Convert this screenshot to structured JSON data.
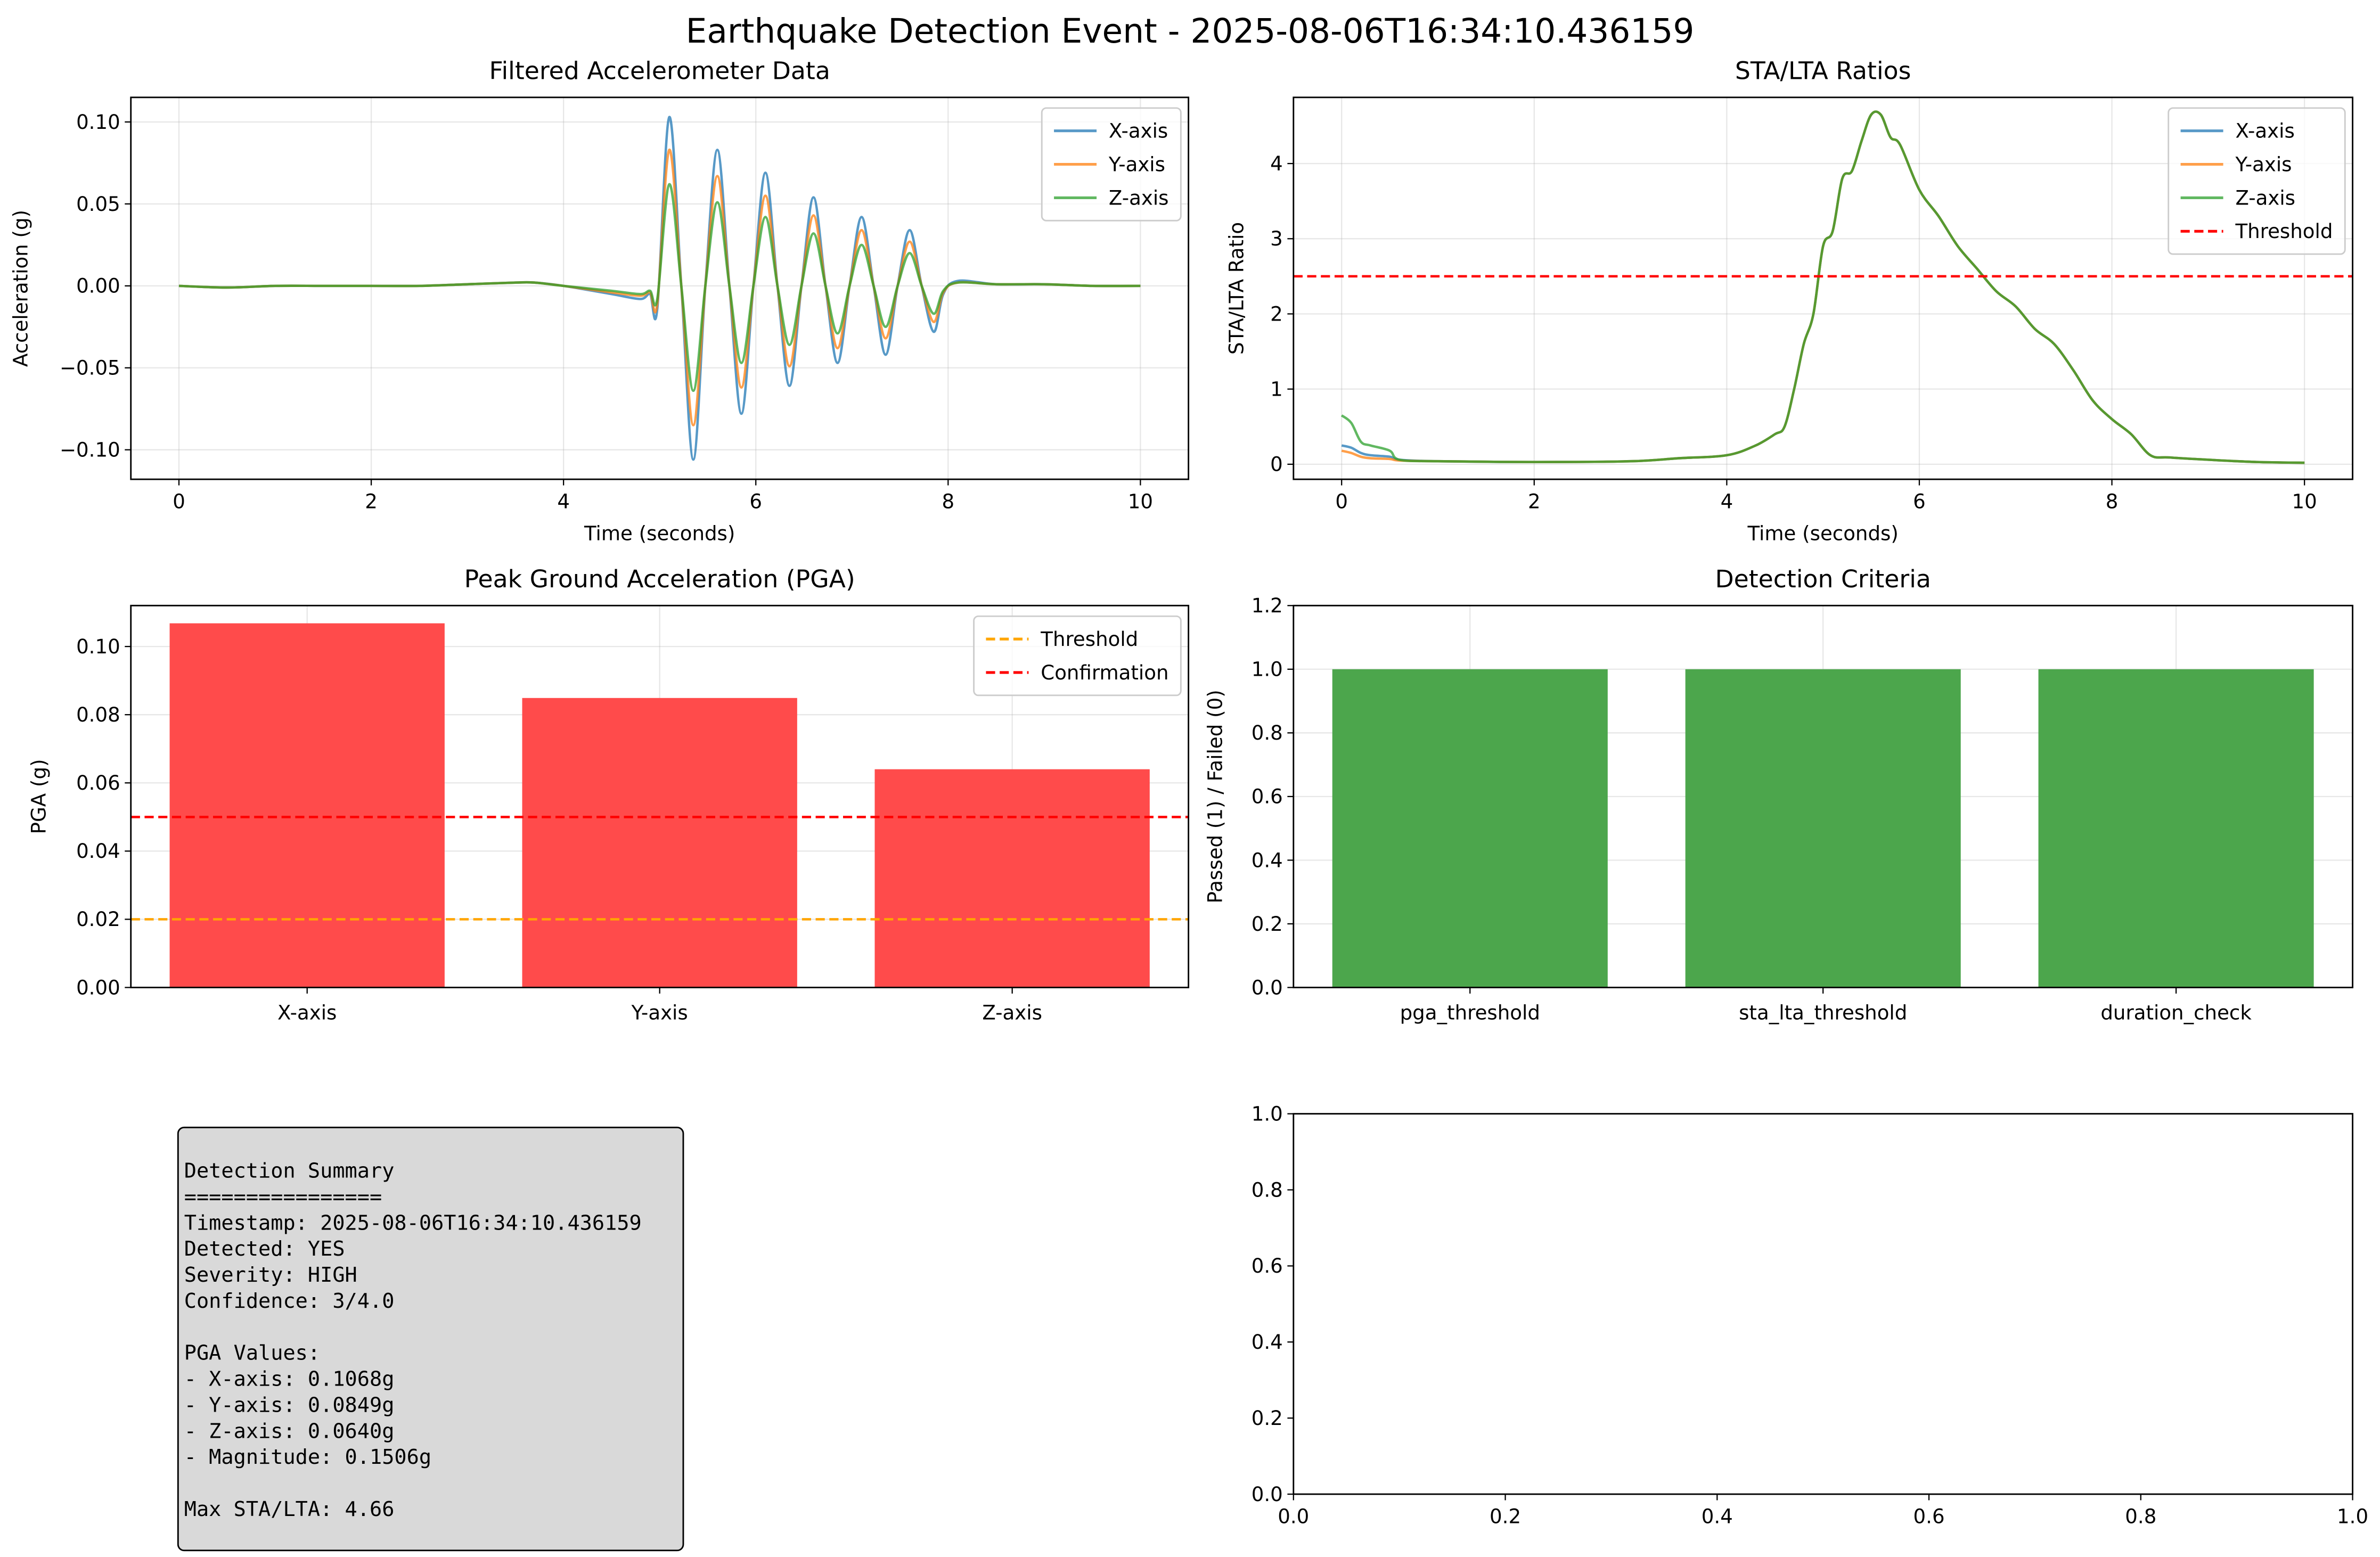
{
  "title": "Earthquake Detection Event - 2025-08-06T16:34:10.436159",
  "summary": [
    [
      "Detection Summary",
      "================",
      "Timestamp: 2025-08-06T16:34:10.436159",
      "Detected: YES",
      "Severity: HIGH",
      "Confidence: 3/4.0"
    ],
    [
      "PGA Values:",
      "- X-axis: 0.1068g",
      "- Y-axis: 0.0849g",
      "- Z-axis: 0.0640g",
      "- Magnitude: 0.1506g"
    ],
    [
      "Max STA/LTA: 4.66"
    ]
  ],
  "chart_data": [
    {
      "type": "line",
      "title": "Filtered Accelerometer Data",
      "x_label": "Time (seconds)",
      "y_label": "Acceleration (g)",
      "x": [
        0,
        0.5,
        1,
        1.5,
        2,
        2.5,
        3,
        3.5,
        3.7,
        4,
        4.5,
        4.8,
        4.9,
        4.975,
        5.1,
        5.225,
        5.35,
        5.475,
        5.6,
        5.725,
        5.85,
        5.975,
        6.1,
        6.225,
        6.35,
        6.475,
        6.6,
        6.725,
        6.85,
        6.975,
        7.1,
        7.225,
        7.35,
        7.475,
        7.6,
        7.725,
        7.85,
        7.95,
        8.1,
        8.5,
        9,
        9.5,
        10
      ],
      "series": [
        {
          "name": "X-axis",
          "color": "#1f77b4",
          "values": [
            0,
            -0.001,
            0,
            0,
            0,
            0,
            0.001,
            0.002,
            0.002,
            0,
            -0.005,
            -0.008,
            -0.005,
            -0.014,
            0.103,
            0,
            -0.106,
            0,
            0.083,
            0,
            -0.078,
            0,
            0.069,
            0,
            -0.061,
            0,
            0.054,
            0,
            -0.047,
            0,
            0.042,
            0,
            -0.042,
            0,
            0.034,
            0,
            -0.028,
            -0.005,
            0.003,
            0.001,
            0.001,
            0,
            0
          ]
        },
        {
          "name": "Y-axis",
          "color": "#ff7f0e",
          "values": [
            0,
            -0.001,
            0,
            0,
            0,
            0,
            0.001,
            0.002,
            0.002,
            0,
            -0.004,
            -0.006,
            -0.004,
            -0.011,
            0.083,
            0,
            -0.085,
            0,
            0.067,
            0,
            -0.062,
            0,
            0.055,
            0,
            -0.049,
            0,
            0.043,
            0,
            -0.038,
            0,
            0.034,
            0,
            -0.032,
            0,
            0.027,
            0,
            -0.022,
            -0.004,
            0.002,
            0.001,
            0.001,
            0,
            0
          ]
        },
        {
          "name": "Z-axis",
          "color": "#2ca02c",
          "values": [
            0,
            -0.001,
            0,
            0,
            0,
            0,
            0.001,
            0.002,
            0.002,
            0,
            -0.003,
            -0.005,
            -0.003,
            -0.008,
            0.062,
            0,
            -0.064,
            0,
            0.051,
            0,
            -0.047,
            0,
            0.042,
            0,
            -0.036,
            0,
            0.032,
            0,
            -0.029,
            0,
            0.025,
            0,
            -0.025,
            0,
            0.02,
            0,
            -0.017,
            -0.003,
            0.002,
            0.001,
            0.001,
            0,
            0
          ]
        }
      ],
      "xlim": [
        -0.5,
        10.5
      ],
      "xticks": [
        0,
        2,
        4,
        6,
        8,
        10
      ],
      "ylim": [
        -0.118,
        0.115
      ],
      "yticks": [
        {
          "value": -0.1,
          "label": "−0.10"
        },
        {
          "value": -0.05,
          "label": "−0.05"
        },
        {
          "value": 0,
          "label": "0.00"
        },
        {
          "value": 0.05,
          "label": "0.05"
        },
        {
          "value": 0.1,
          "label": "0.10"
        }
      ],
      "grid": true,
      "legend": "upper right"
    },
    {
      "type": "line",
      "title": "STA/LTA Ratios",
      "x_label": "Time (seconds)",
      "y_label": "STA/LTA Ratio",
      "x": [
        0,
        0.1,
        0.2,
        0.3,
        0.5,
        0.6,
        1,
        2,
        3,
        3.5,
        4,
        4.3,
        4.5,
        4.6,
        4.7,
        4.8,
        4.9,
        5,
        5.1,
        5.2,
        5.3,
        5.4,
        5.5,
        5.6,
        5.7,
        5.8,
        6,
        6.2,
        6.4,
        6.6,
        6.8,
        7,
        7.2,
        7.4,
        7.6,
        7.8,
        8,
        8.2,
        8.4,
        8.6,
        9,
        9.5,
        10
      ],
      "series": [
        {
          "name": "X-axis",
          "color": "#1f77b4",
          "values": [
            0.25,
            0.22,
            0.15,
            0.12,
            0.1,
            0.06,
            0.04,
            0.03,
            0.04,
            0.08,
            0.12,
            0.25,
            0.4,
            0.5,
            1.0,
            1.6,
            2.0,
            2.9,
            3.1,
            3.8,
            3.9,
            4.3,
            4.65,
            4.65,
            4.35,
            4.25,
            3.65,
            3.3,
            2.9,
            2.6,
            2.3,
            2.1,
            1.8,
            1.6,
            1.25,
            0.85,
            0.6,
            0.4,
            0.12,
            0.09,
            0.06,
            0.03,
            0.02
          ]
        },
        {
          "name": "Y-axis",
          "color": "#ff7f0e",
          "values": [
            0.18,
            0.15,
            0.1,
            0.08,
            0.07,
            0.05,
            0.04,
            0.03,
            0.04,
            0.08,
            0.12,
            0.25,
            0.4,
            0.5,
            1.0,
            1.6,
            2.0,
            2.9,
            3.1,
            3.8,
            3.9,
            4.3,
            4.65,
            4.65,
            4.35,
            4.25,
            3.65,
            3.3,
            2.9,
            2.6,
            2.3,
            2.1,
            1.8,
            1.6,
            1.25,
            0.85,
            0.6,
            0.4,
            0.12,
            0.09,
            0.06,
            0.03,
            0.02
          ]
        },
        {
          "name": "Z-axis",
          "color": "#2ca02c",
          "values": [
            0.65,
            0.55,
            0.3,
            0.25,
            0.18,
            0.06,
            0.04,
            0.03,
            0.04,
            0.08,
            0.12,
            0.25,
            0.4,
            0.5,
            1.0,
            1.6,
            2.0,
            2.9,
            3.1,
            3.8,
            3.9,
            4.3,
            4.65,
            4.65,
            4.35,
            4.25,
            3.65,
            3.3,
            2.9,
            2.6,
            2.3,
            2.1,
            1.8,
            1.6,
            1.25,
            0.85,
            0.6,
            0.4,
            0.12,
            0.09,
            0.06,
            0.03,
            0.02
          ]
        }
      ],
      "hlines": [
        {
          "name": "Threshold",
          "value": 2.5,
          "color": "#ff0000"
        }
      ],
      "xlim": [
        -0.5,
        10.5
      ],
      "xticks": [
        0,
        2,
        4,
        6,
        8,
        10
      ],
      "ylim": [
        -0.2,
        4.88
      ],
      "yticks": [
        0,
        1,
        2,
        3,
        4
      ],
      "grid": true,
      "legend": "upper right"
    },
    {
      "type": "bar",
      "title": "Peak Ground Acceleration (PGA)",
      "y_label": "PGA (g)",
      "categories": [
        "X-axis",
        "Y-axis",
        "Z-axis"
      ],
      "values": [
        0.1068,
        0.0849,
        0.064
      ],
      "color": "#ff4b4b",
      "hlines": [
        {
          "name": "Threshold",
          "value": 0.02,
          "color": "#ffa500"
        },
        {
          "name": "Confirmation",
          "value": 0.05,
          "color": "#ff0000"
        }
      ],
      "ylim": [
        0,
        0.112
      ],
      "yticks": [
        {
          "value": 0,
          "label": "0.00"
        },
        {
          "value": 0.02,
          "label": "0.02"
        },
        {
          "value": 0.04,
          "label": "0.04"
        },
        {
          "value": 0.06,
          "label": "0.06"
        },
        {
          "value": 0.08,
          "label": "0.08"
        },
        {
          "value": 0.1,
          "label": "0.10"
        }
      ],
      "grid": true,
      "legend": "upper right"
    },
    {
      "type": "bar",
      "title": "Detection Criteria",
      "y_label": "Passed (1) / Failed (0)",
      "categories": [
        "pga_threshold",
        "sta_lta_threshold",
        "duration_check"
      ],
      "values": [
        1,
        1,
        1
      ],
      "color": "#4ca64c",
      "ylim": [
        0,
        1.2
      ],
      "yticks": [
        {
          "value": 0,
          "label": "0.0"
        },
        {
          "value": 0.2,
          "label": "0.2"
        },
        {
          "value": 0.4,
          "label": "0.4"
        },
        {
          "value": 0.6,
          "label": "0.6"
        },
        {
          "value": 0.8,
          "label": "0.8"
        },
        {
          "value": 1,
          "label": "1.0"
        },
        {
          "value": 1.2,
          "label": "1.2"
        }
      ],
      "grid": true
    },
    {
      "type": "line",
      "series": [],
      "xlim": [
        0,
        1
      ],
      "xticks": [
        {
          "value": 0,
          "label": "0.0"
        },
        {
          "value": 0.2,
          "label": "0.2"
        },
        {
          "value": 0.4,
          "label": "0.4"
        },
        {
          "value": 0.6,
          "label": "0.6"
        },
        {
          "value": 0.8,
          "label": "0.8"
        },
        {
          "value": 1,
          "label": "1.0"
        }
      ],
      "ylim": [
        0,
        1
      ],
      "yticks": [
        {
          "value": 0,
          "label": "0.0"
        },
        {
          "value": 0.2,
          "label": "0.2"
        },
        {
          "value": 0.4,
          "label": "0.4"
        },
        {
          "value": 0.6,
          "label": "0.6"
        },
        {
          "value": 0.8,
          "label": "0.8"
        },
        {
          "value": 1,
          "label": "1.0"
        }
      ],
      "grid": false
    }
  ]
}
